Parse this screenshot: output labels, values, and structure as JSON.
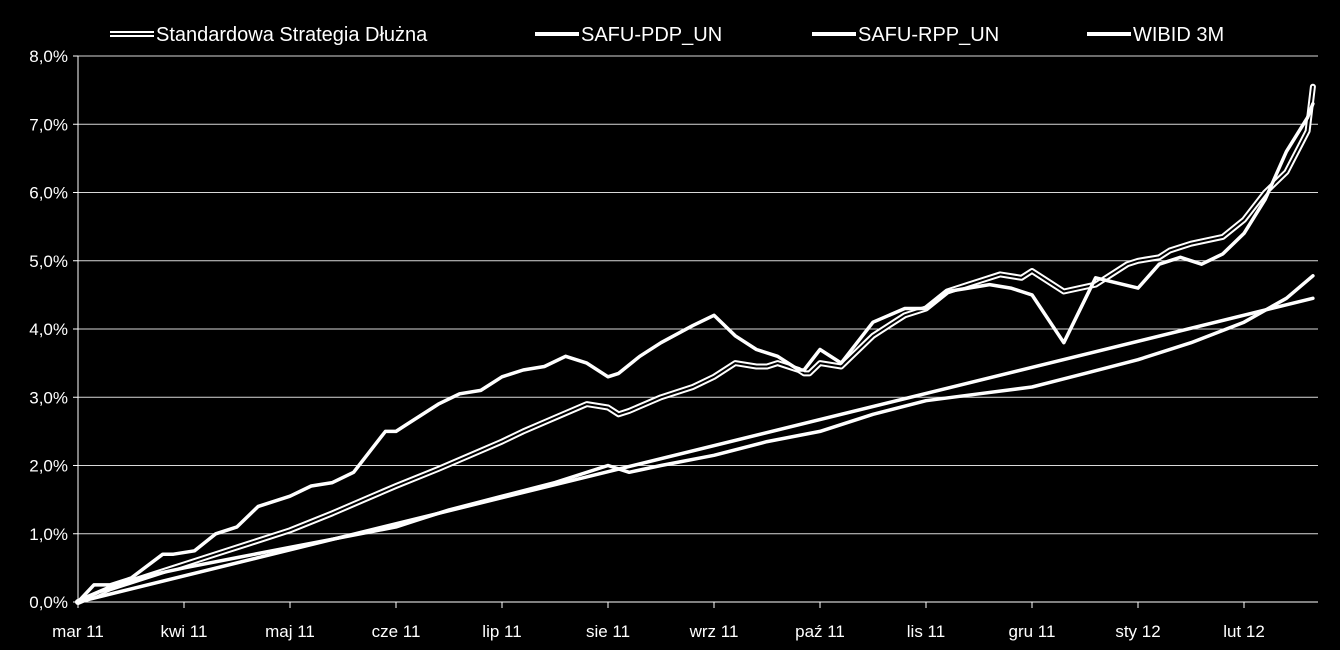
{
  "chart_data": {
    "type": "line",
    "title": "",
    "xlabel": "",
    "ylabel": "",
    "ylim": [
      0,
      8
    ],
    "y_ticks": [
      "0,0%",
      "1,0%",
      "2,0%",
      "3,0%",
      "4,0%",
      "5,0%",
      "6,0%",
      "7,0%",
      "8,0%"
    ],
    "categories": [
      "mar 11",
      "kwi 11",
      "maj 11",
      "cze 11",
      "lip 11",
      "sie 11",
      "wrz 11",
      "paź 11",
      "lis 11",
      "gru 11",
      "sty 12",
      "lut 12"
    ],
    "grid": true,
    "legend_position": "top",
    "series": [
      {
        "name": "Standardowa Strategia Dłużna",
        "style": "double",
        "color": "#ffffff",
        "x": [
          0,
          0.3,
          0.6,
          0.9,
          1.0,
          1.3,
          1.6,
          2.0,
          2.4,
          2.7,
          3.0,
          3.4,
          3.7,
          4.0,
          4.2,
          4.5,
          4.8,
          5.0,
          5.1,
          5.2,
          5.5,
          5.8,
          6.0,
          6.2,
          6.4,
          6.5,
          6.6,
          6.8,
          6.85,
          6.9,
          7.0,
          7.2,
          7.5,
          7.8,
          8.0,
          8.2,
          8.4,
          8.5,
          8.7,
          8.9,
          9.0,
          9.3,
          9.6,
          9.9,
          10.0,
          10.2,
          10.3,
          10.5,
          10.8,
          11.0,
          11.2,
          11.4,
          11.5,
          11.6,
          11.65
        ],
        "y": [
          0,
          0.2,
          0.35,
          0.5,
          0.55,
          0.7,
          0.85,
          1.05,
          1.3,
          1.5,
          1.7,
          1.95,
          2.15,
          2.35,
          2.5,
          2.7,
          2.9,
          2.85,
          2.75,
          2.8,
          3.0,
          3.15,
          3.3,
          3.5,
          3.45,
          3.45,
          3.5,
          3.4,
          3.35,
          3.35,
          3.5,
          3.45,
          3.9,
          4.2,
          4.3,
          4.55,
          4.65,
          4.7,
          4.8,
          4.75,
          4.85,
          4.55,
          4.65,
          4.95,
          5.0,
          5.05,
          5.15,
          5.25,
          5.35,
          5.6,
          6.0,
          6.3,
          6.6,
          6.9,
          7.55
        ]
      },
      {
        "name": "SAFU-PDP_UN",
        "style": "single",
        "color": "#ffffff",
        "x": [
          0,
          0.2,
          0.5,
          0.7,
          1.0,
          1.5,
          2.0,
          2.5,
          3.0,
          3.2,
          3.5,
          4.0,
          4.5,
          5.0,
          5.2,
          5.5,
          6.0,
          6.5,
          7.0,
          7.5,
          8.0,
          8.5,
          9.0,
          9.5,
          10.0,
          10.5,
          11.0,
          11.4,
          11.65
        ],
        "y": [
          0,
          0.15,
          0.3,
          0.4,
          0.5,
          0.65,
          0.8,
          0.95,
          1.1,
          1.2,
          1.35,
          1.55,
          1.75,
          2.0,
          1.9,
          2.0,
          2.15,
          2.35,
          2.5,
          2.75,
          2.95,
          3.05,
          3.15,
          3.35,
          3.55,
          3.8,
          4.1,
          4.45,
          4.78
        ]
      },
      {
        "name": "SAFU-RPP_UN",
        "style": "single",
        "color": "#ffffff",
        "x": [
          0,
          0.15,
          0.3,
          0.5,
          0.8,
          0.9,
          1.1,
          1.3,
          1.5,
          1.7,
          2.0,
          2.2,
          2.4,
          2.6,
          2.9,
          3.0,
          3.1,
          3.4,
          3.6,
          3.8,
          4.0,
          4.2,
          4.4,
          4.6,
          4.8,
          5.0,
          5.1,
          5.3,
          5.5,
          5.8,
          6.0,
          6.2,
          6.4,
          6.6,
          6.8,
          6.85,
          7.0,
          7.2,
          7.5,
          7.8,
          8.0,
          8.2,
          8.4,
          8.6,
          8.8,
          8.9,
          9.0,
          9.3,
          9.6,
          10.0,
          10.2,
          10.4,
          10.6,
          10.8,
          11.0,
          11.2,
          11.4,
          11.6,
          11.65
        ],
        "y": [
          0,
          0.25,
          0.25,
          0.35,
          0.7,
          0.7,
          0.75,
          1.0,
          1.1,
          1.4,
          1.55,
          1.7,
          1.75,
          1.9,
          2.5,
          2.5,
          2.6,
          2.9,
          3.05,
          3.1,
          3.3,
          3.4,
          3.45,
          3.6,
          3.5,
          3.3,
          3.35,
          3.6,
          3.8,
          4.05,
          4.2,
          3.9,
          3.7,
          3.6,
          3.4,
          3.4,
          3.7,
          3.5,
          4.1,
          4.3,
          4.3,
          4.55,
          4.6,
          4.65,
          4.6,
          4.55,
          4.5,
          3.8,
          4.75,
          4.6,
          4.95,
          5.05,
          4.95,
          5.1,
          5.4,
          5.9,
          6.6,
          7.1,
          7.3
        ]
      },
      {
        "name": "WIBID 3M",
        "style": "single",
        "color": "#ffffff",
        "x": [
          0,
          11.65
        ],
        "y": [
          0,
          4.45
        ]
      }
    ]
  }
}
